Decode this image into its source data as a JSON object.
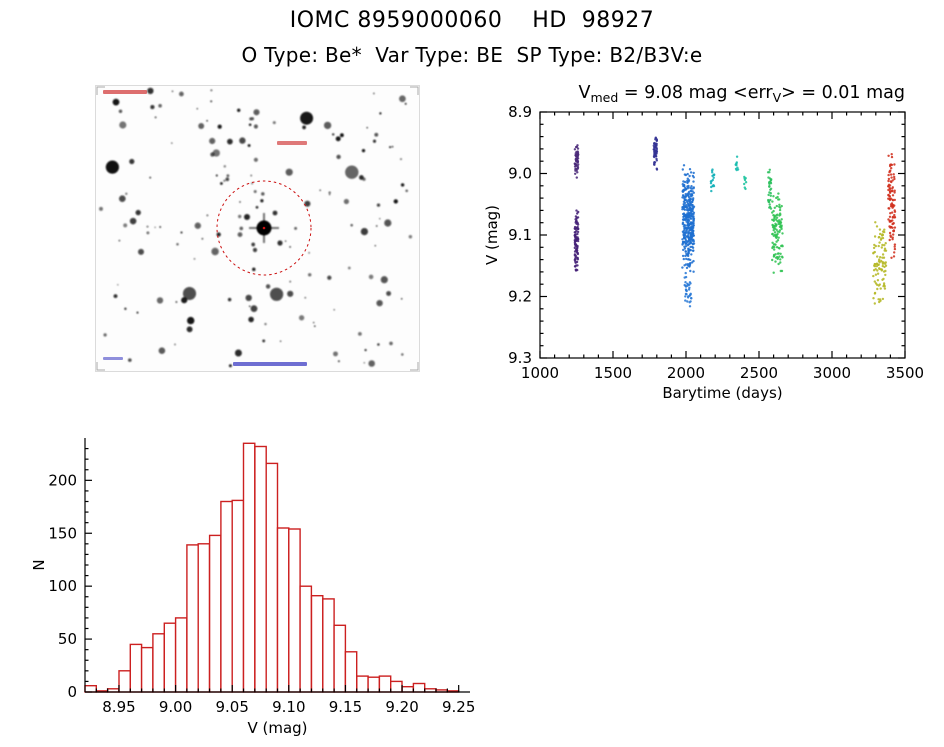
{
  "page": {
    "title": "IOMC 8959000060    HD  98927",
    "subtitle": "O Type: Be*  Var Type: BE  SP Type: B2/B3V:e"
  },
  "finder_chart": {
    "description": "greyscale star field finder image with dashed target circle",
    "circle_color": "#cc1111",
    "annotation_red": "#cc2222",
    "annotation_blue": "#2222bb"
  },
  "chart_data": [
    {
      "id": "lightcurve",
      "type": "scatter",
      "title": "V_med = 9.08 mag <err_V> = 0.01 mag",
      "title_parts": [
        {
          "text": "V"
        },
        {
          "text": "med",
          "sub": true
        },
        {
          "text": " = 9.08 mag <err"
        },
        {
          "text": "V",
          "sub": true
        },
        {
          "text": "> = 0.01 mag"
        }
      ],
      "xlabel": "Barytime (days)",
      "ylabel": "V (mag)",
      "xlim": [
        1000,
        3500
      ],
      "ylim": [
        8.9,
        9.3
      ],
      "y_inverted": true,
      "xticks": [
        1000,
        1500,
        2000,
        2500,
        3000,
        3500
      ],
      "xtick_labels": [
        "1000",
        "1500",
        "2000",
        "2500",
        "3000",
        "3500"
      ],
      "yticks": [
        8.9,
        9.0,
        9.1,
        9.2,
        9.3
      ],
      "ytick_labels": [
        "8.9",
        "9.0",
        "9.1",
        "9.2",
        "9.3"
      ],
      "grid": false,
      "legend": false,
      "clusters": [
        {
          "t": [
            1238,
            1262
          ],
          "v": [
            8.95,
            9.01
          ],
          "n": 55,
          "color": "#4b2a7a"
        },
        {
          "t": [
            1238,
            1262
          ],
          "v": [
            9.05,
            9.17
          ],
          "n": 95,
          "color": "#452278"
        },
        {
          "t": [
            1778,
            1802
          ],
          "v": [
            8.93,
            9.0
          ],
          "n": 60,
          "color": "#343394"
        },
        {
          "t": [
            1975,
            2055
          ],
          "v": [
            8.98,
            9.17
          ],
          "n": 380,
          "color": "#1f6fd0"
        },
        {
          "t": [
            1990,
            2040
          ],
          "v": [
            9.16,
            9.22
          ],
          "n": 35,
          "color": "#2a7ad6"
        },
        {
          "t": [
            2170,
            2195
          ],
          "v": [
            8.98,
            9.04
          ],
          "n": 18,
          "color": "#14b0b8"
        },
        {
          "t": [
            2340,
            2362
          ],
          "v": [
            8.97,
            9.0
          ],
          "n": 10,
          "color": "#16bcae"
        },
        {
          "t": [
            2398,
            2412
          ],
          "v": [
            8.99,
            9.03
          ],
          "n": 8,
          "color": "#1cc49e"
        },
        {
          "t": [
            2562,
            2585
          ],
          "v": [
            8.98,
            9.07
          ],
          "n": 32,
          "color": "#2dc05e"
        },
        {
          "t": [
            2590,
            2662
          ],
          "v": [
            9.02,
            9.17
          ],
          "n": 115,
          "color": "#31c353"
        },
        {
          "t": [
            3282,
            3372
          ],
          "v": [
            9.07,
            9.22
          ],
          "n": 95,
          "color": "#b5b827"
        },
        {
          "t": [
            3385,
            3432
          ],
          "v": [
            8.95,
            9.15
          ],
          "n": 105,
          "color": "#d0301e"
        }
      ]
    },
    {
      "id": "histogram",
      "type": "bar",
      "xlabel": "V (mag)",
      "ylabel": "N",
      "xlim": [
        8.92,
        9.26
      ],
      "ylim": [
        0,
        240
      ],
      "xticks": [
        8.95,
        9.0,
        9.05,
        9.1,
        9.15,
        9.2,
        9.25
      ],
      "xtick_labels": [
        "8.95",
        "9.00",
        "9.05",
        "9.10",
        "9.15",
        "9.20",
        "9.25"
      ],
      "yticks": [
        0,
        50,
        100,
        150,
        200
      ],
      "ytick_labels": [
        "0",
        "50",
        "100",
        "150",
        "200"
      ],
      "bar_color": "#cc2020",
      "bin_start": 8.92,
      "bin_width": 0.01,
      "counts": [
        6,
        1,
        3,
        20,
        45,
        42,
        55,
        65,
        70,
        139,
        140,
        148,
        180,
        181,
        235,
        232,
        216,
        155,
        154,
        100,
        91,
        88,
        63,
        38,
        15,
        14,
        15,
        10,
        5,
        8,
        3,
        2,
        1
      ],
      "grid": false,
      "legend": false
    }
  ]
}
